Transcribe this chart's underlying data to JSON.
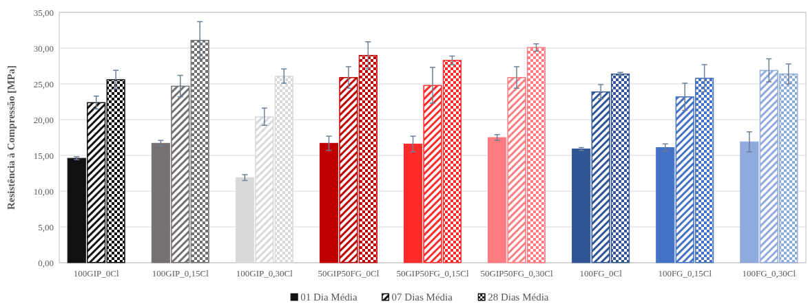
{
  "chart_data": {
    "type": "bar",
    "ylabel": "Resistência à Compressão [MPa]",
    "categories": [
      "100GIP_0Cl",
      "100GIP_0,15Cl",
      "100GIP_0,30Cl",
      "50GIP50FG_0Cl",
      "50GIP50FG_0,15Cl",
      "50GIP50FG_0,30Cl",
      "100FG_0Cl",
      "100FG_0,15Cl",
      "100FG_0,30Cl"
    ],
    "series": [
      {
        "name": "01 Dia Média",
        "color": "#111111",
        "colors": [
          "#111111",
          "#767171",
          "#d9d9d9",
          "#c00000",
          "#ff2a2a",
          "#ff7c80",
          "#2f5597",
          "#4472c4",
          "#8faadc"
        ],
        "values": [
          14.6,
          16.7,
          11.9,
          16.7,
          16.6,
          17.5,
          15.9,
          16.1,
          16.9
        ],
        "errors": [
          0.2,
          0.4,
          0.4,
          1.0,
          1.1,
          0.4,
          0.2,
          0.5,
          1.4
        ]
      },
      {
        "name": "07 Dias Média",
        "color": "#111111",
        "colors": [
          "#111111",
          "#767171",
          "#d9d9d9",
          "#c00000",
          "#ff2a2a",
          "#ff7c80",
          "#2f5597",
          "#4472c4",
          "#8faadc"
        ],
        "values": [
          22.4,
          24.7,
          20.4,
          25.9,
          24.8,
          25.9,
          23.9,
          23.2,
          26.9
        ],
        "errors": [
          0.9,
          1.5,
          1.2,
          1.5,
          2.5,
          1.5,
          1.0,
          1.9,
          1.6
        ]
      },
      {
        "name": "28 Dias Média",
        "color": "#111111",
        "colors": [
          "#111111",
          "#767171",
          "#d9d9d9",
          "#c00000",
          "#ff2a2a",
          "#ff7c80",
          "#2f5597",
          "#4472c4",
          "#8faadc"
        ],
        "values": [
          25.6,
          31.1,
          26.1,
          29.0,
          28.3,
          30.1,
          26.4,
          25.8,
          26.4
        ],
        "errors": [
          1.3,
          2.6,
          1.0,
          1.9,
          0.6,
          0.5,
          0.2,
          1.9,
          1.4
        ]
      }
    ],
    "ylim": [
      0,
      35
    ],
    "yticks": [
      {
        "value": 0,
        "label": "0,00"
      },
      {
        "value": 5,
        "label": "5,00"
      },
      {
        "value": 10,
        "label": "10,00"
      },
      {
        "value": 15,
        "label": "15,00"
      },
      {
        "value": 20,
        "label": "20,00"
      },
      {
        "value": 25,
        "label": "25,00"
      },
      {
        "value": 30,
        "label": "30,00"
      },
      {
        "value": 35,
        "label": "35,00"
      }
    ],
    "grid": "y",
    "legend": "bottom"
  }
}
